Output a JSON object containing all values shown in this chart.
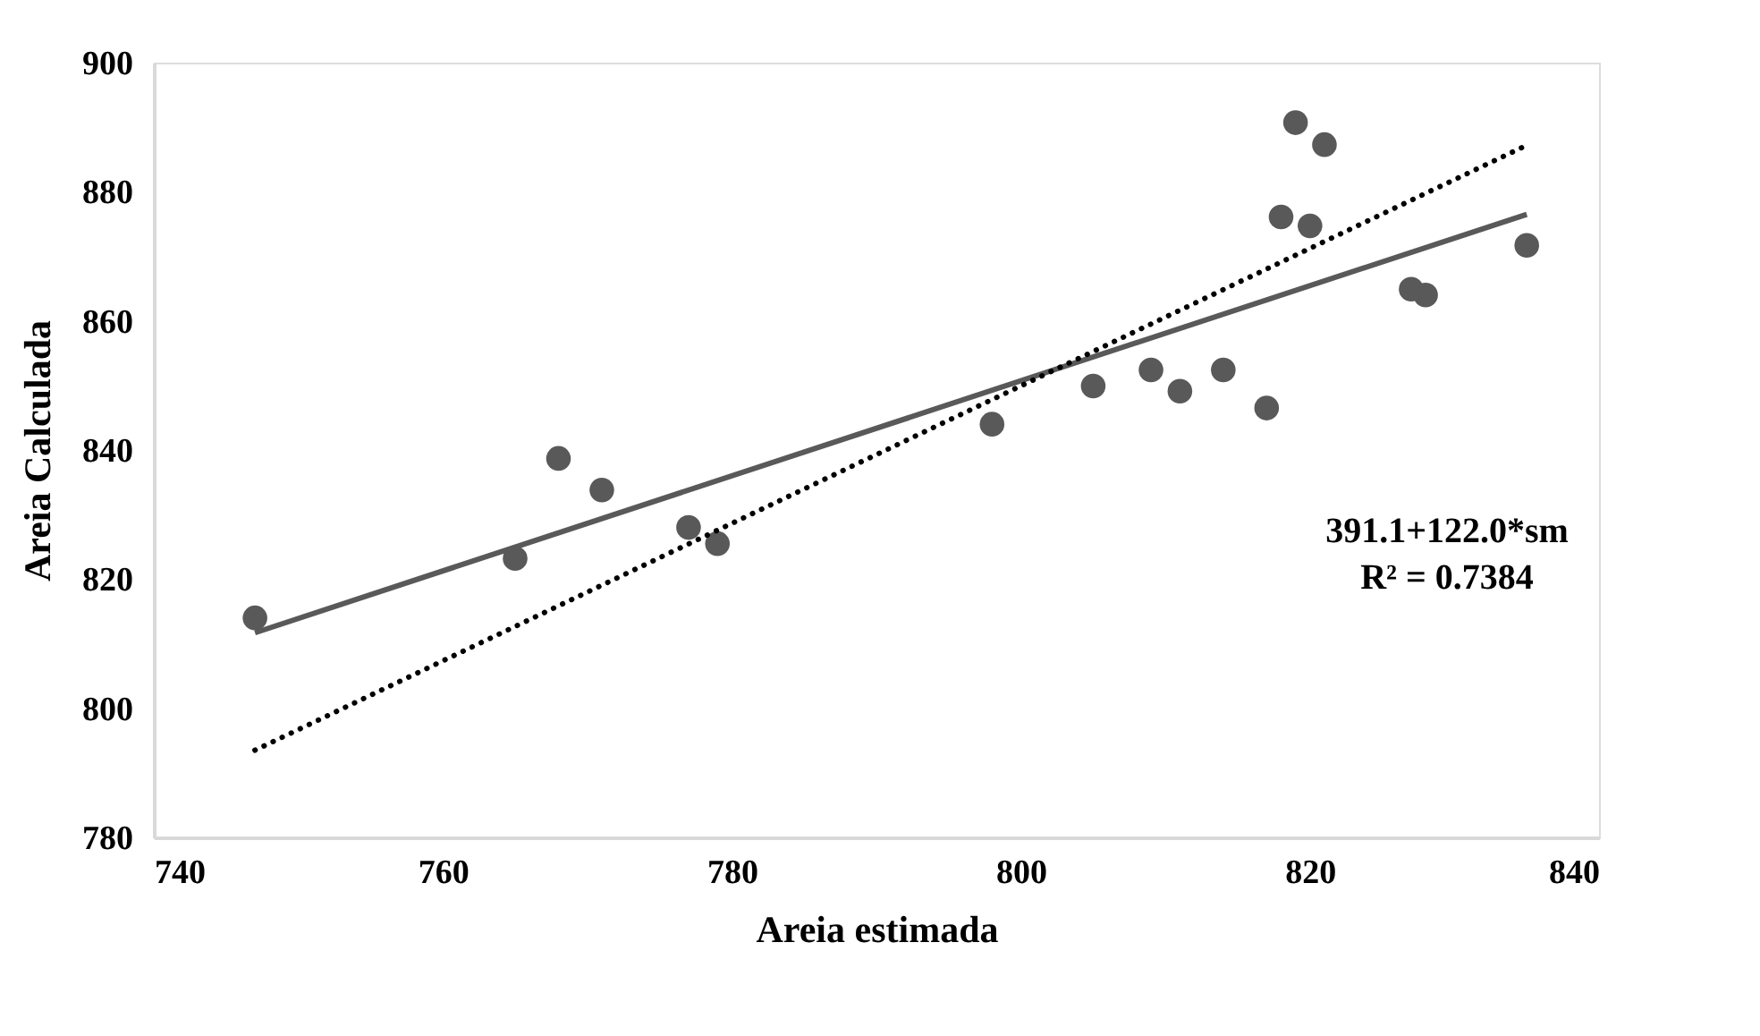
{
  "chart_data": {
    "type": "scatter",
    "xlabel": "Areia estimada",
    "ylabel": "Areia Calculada",
    "xlim": [
      740,
      840
    ],
    "xticks": [
      740,
      760,
      780,
      800,
      820,
      840
    ],
    "ylim": [
      780,
      900
    ],
    "yticks": [
      780,
      800,
      820,
      840,
      860,
      880,
      900
    ],
    "grid": false,
    "series": [
      {
        "marker": "circle",
        "color": "#595959",
        "x": [
          747,
          765,
          768,
          771,
          777,
          779,
          798,
          805,
          809,
          811,
          814,
          817,
          818,
          819,
          820,
          821,
          827,
          828,
          835
        ],
        "values": [
          814.0,
          823.2,
          838.7,
          833.8,
          828.0,
          825.5,
          844.0,
          849.9,
          852.4,
          849.1,
          852.4,
          846.5,
          876.1,
          890.7,
          874.7,
          887.3,
          864.9,
          864.0,
          871.7
        ]
      },
      {
        "type": "line",
        "color": "#595959",
        "line_style": "solid",
        "x": [
          747,
          835
        ],
        "values": [
          811.7,
          876.5
        ]
      },
      {
        "type": "line",
        "color": "#000000",
        "line_style": "dotted",
        "x": [
          747,
          835
        ],
        "values": [
          793.5,
          887.2
        ]
      }
    ],
    "annotations": [
      "391.1+122.0*sm",
      "R² = 0.7384"
    ]
  }
}
